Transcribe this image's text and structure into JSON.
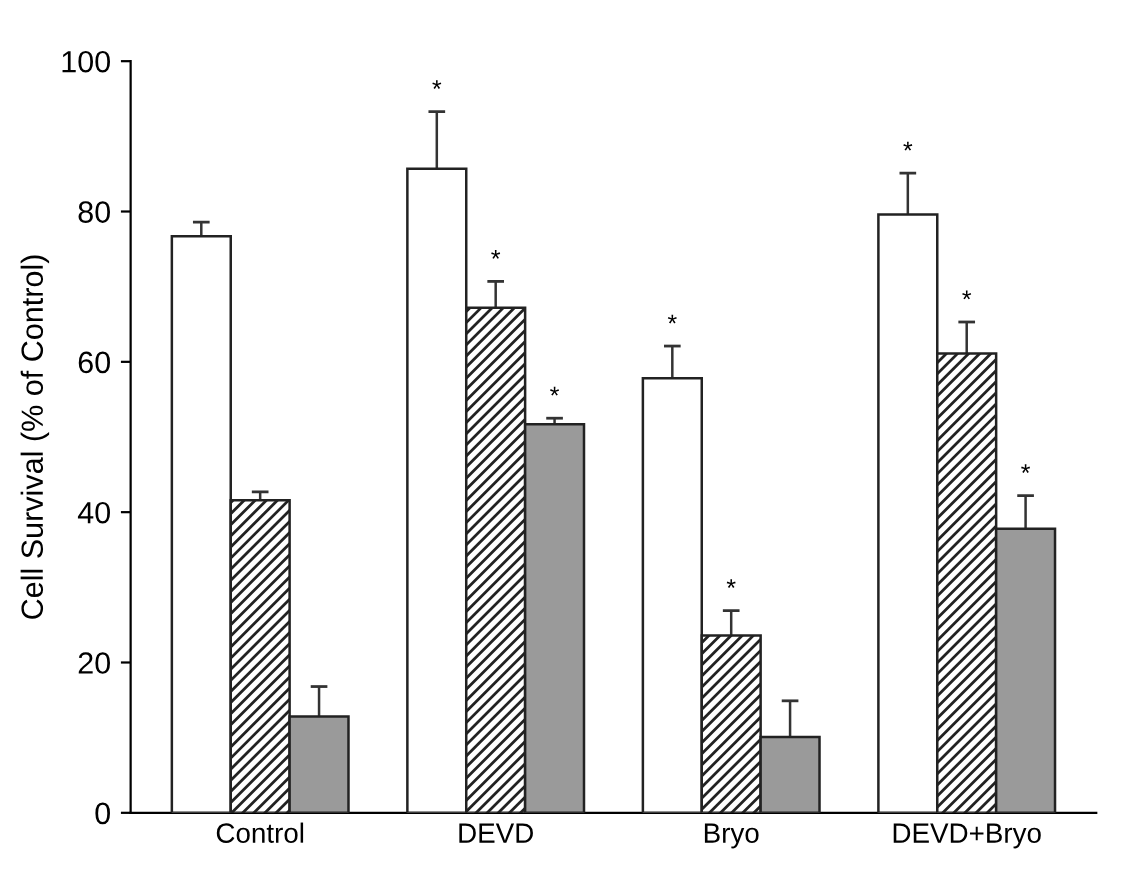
{
  "chart_data": {
    "type": "bar",
    "ylabel": "Cell Survival (% of Control)",
    "categories": [
      "Control",
      "DEVD",
      "Bryo",
      "DEVD+Bryo"
    ],
    "series": [
      {
        "color": "#ffffff",
        "values": [
          76.7,
          85.7,
          57.8,
          79.6
        ],
        "errors": [
          1.9,
          7.6,
          4.3,
          5.5
        ],
        "value_labels": [
          null,
          "*",
          "*",
          "*"
        ]
      },
      {
        "color": "#222222",
        "values": [
          41.6,
          67.2,
          23.6,
          61.1
        ],
        "errors": [
          1.1,
          3.5,
          3.3,
          4.2
        ],
        "value_labels": [
          null,
          "*",
          "*",
          "*"
        ]
      },
      {
        "color": "#9a9a9a",
        "values": [
          12.8,
          51.7,
          10.1,
          37.8
        ],
        "errors": [
          4.0,
          0.8,
          4.8,
          4.4
        ],
        "value_labels": [
          null,
          "*",
          null,
          "*"
        ]
      }
    ],
    "ylim": [
      0,
      100
    ],
    "yticks": [
      0,
      20,
      40,
      60,
      80,
      100
    ],
    "grid": false,
    "legend": false
  }
}
